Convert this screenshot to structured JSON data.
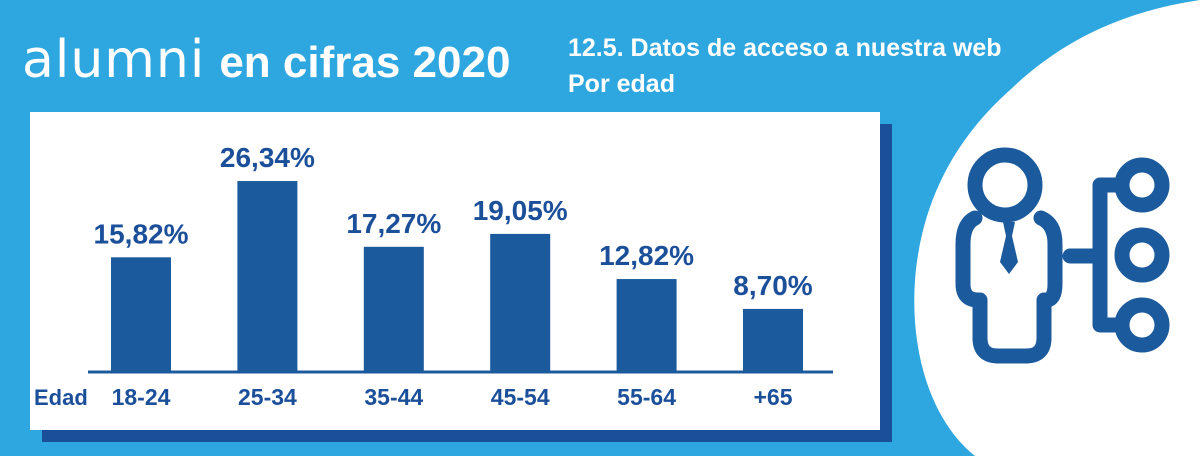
{
  "brand": {
    "logo": "alumni",
    "subtitle": "en cifras 2020"
  },
  "heading": {
    "line1": "12.5. Datos de acceso a nuestra web",
    "line2": "Por edad"
  },
  "chart_data": {
    "type": "bar",
    "axis_label": "Edad",
    "categories": [
      "18-24",
      "25-34",
      "35-44",
      "45-54",
      "55-64",
      "+65"
    ],
    "values": [
      15.82,
      26.34,
      17.27,
      19.05,
      12.82,
      8.7
    ],
    "labels": [
      "15,82%",
      "26,34%",
      "17,27%",
      "19,05%",
      "12,82%",
      "8,70%"
    ],
    "unit": "%",
    "ylim": [
      0,
      30
    ],
    "grid": false,
    "legend": "none"
  },
  "icon": {
    "name": "user-network-icon"
  },
  "colors": {
    "background": "#2ea7e0",
    "bar": "#1b5a9c",
    "label": "#1b4f9a",
    "panel": "#ffffff",
    "shadow": "#1b4f9a"
  }
}
